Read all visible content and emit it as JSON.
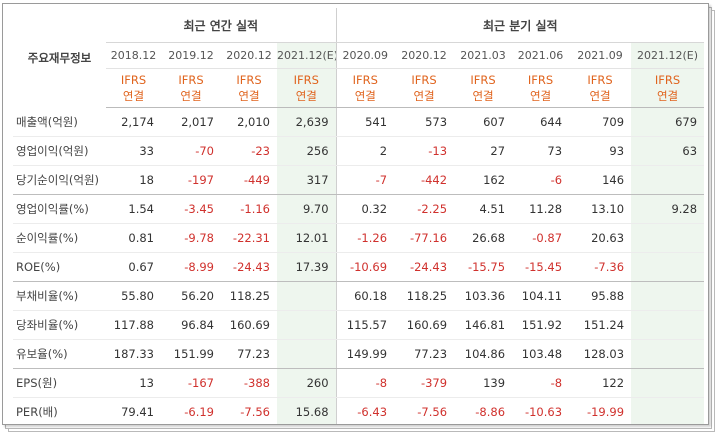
{
  "header": {
    "row_label": "주요재무정보",
    "annual_title": "최근 연간 실적",
    "quarterly_title": "최근 분기 실적",
    "periods": [
      "2018.12",
      "2019.12",
      "2020.12",
      "2021.12(E)",
      "2020.09",
      "2020.12",
      "2021.03",
      "2021.06",
      "2021.09",
      "2021.12(E)"
    ],
    "basis_line1": "IFRS",
    "basis_line2": "연결"
  },
  "rows": [
    {
      "label": "매출액(억원)",
      "values": [
        "2,174",
        "2,017",
        "2,010",
        "2,639",
        "541",
        "573",
        "607",
        "644",
        "709",
        "679"
      ]
    },
    {
      "label": "영업이익(억원)",
      "values": [
        "33",
        "-70",
        "-23",
        "256",
        "2",
        "-13",
        "27",
        "73",
        "93",
        "63"
      ]
    },
    {
      "label": "당기순이익(억원)",
      "values": [
        "18",
        "-197",
        "-449",
        "317",
        "-7",
        "-442",
        "162",
        "-6",
        "146",
        ""
      ]
    },
    {
      "label": "영업이익률(%)",
      "values": [
        "1.54",
        "-3.45",
        "-1.16",
        "9.70",
        "0.32",
        "-2.25",
        "4.51",
        "11.28",
        "13.10",
        "9.28"
      ]
    },
    {
      "label": "순이익률(%)",
      "values": [
        "0.81",
        "-9.78",
        "-22.31",
        "12.01",
        "-1.26",
        "-77.16",
        "26.68",
        "-0.87",
        "20.63",
        ""
      ]
    },
    {
      "label": "ROE(%)",
      "values": [
        "0.67",
        "-8.99",
        "-24.43",
        "17.39",
        "-10.69",
        "-24.43",
        "-15.75",
        "-15.45",
        "-7.36",
        ""
      ]
    },
    {
      "label": "부채비율(%)",
      "values": [
        "55.80",
        "56.20",
        "118.25",
        "",
        "60.18",
        "118.25",
        "103.36",
        "104.11",
        "95.88",
        ""
      ]
    },
    {
      "label": "당좌비율(%)",
      "values": [
        "117.88",
        "96.84",
        "160.69",
        "",
        "115.57",
        "160.69",
        "146.81",
        "151.92",
        "151.24",
        ""
      ]
    },
    {
      "label": "유보율(%)",
      "values": [
        "187.33",
        "151.99",
        "77.23",
        "",
        "149.99",
        "77.23",
        "104.86",
        "103.48",
        "128.03",
        ""
      ]
    },
    {
      "label": "EPS(원)",
      "values": [
        "13",
        "-167",
        "-388",
        "260",
        "-8",
        "-379",
        "139",
        "-8",
        "122",
        ""
      ]
    },
    {
      "label": "PER(배)",
      "values": [
        "79.41",
        "-6.19",
        "-7.56",
        "15.68",
        "-6.43",
        "-7.56",
        "-8.86",
        "-10.63",
        "-19.99",
        ""
      ]
    }
  ],
  "colors": {
    "negative": "#d0312d",
    "basis": "#e0641e",
    "estimate_bg": "#eef6ee"
  }
}
